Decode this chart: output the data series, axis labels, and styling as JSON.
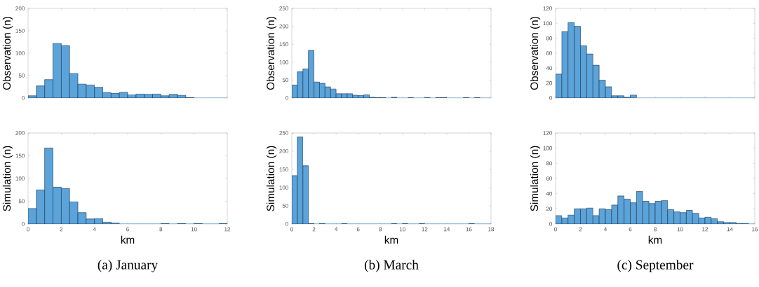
{
  "chart_data": [
    {
      "type": "histogram",
      "ylabel": "Observation (n)",
      "color": "#5ba3d9",
      "bins": [
        0,
        0.5,
        1,
        1.5,
        2,
        2.5,
        3,
        3.5,
        4,
        4.5,
        5,
        5.5,
        6,
        6.5,
        7,
        7.5,
        8,
        8.5,
        9,
        9.5,
        10,
        10.5,
        11,
        11.5,
        12
      ],
      "values": [
        5,
        27,
        41,
        122,
        117,
        55,
        31,
        29,
        24,
        12,
        10,
        13,
        7,
        9,
        8,
        9,
        5,
        8,
        6,
        1,
        0,
        0,
        0,
        0
      ],
      "xlim": [
        0,
        12
      ],
      "xticks": [
        0,
        2,
        4,
        6,
        8,
        10,
        12
      ],
      "ylim": [
        0,
        200
      ],
      "yticks": [
        0,
        50,
        100,
        150,
        200
      ],
      "tick_labels": "y"
    },
    {
      "type": "histogram",
      "ylabel": "Observation (n)",
      "color": "#5ba3d9",
      "bins": [
        0,
        0.5,
        1,
        1.5,
        2,
        2.5,
        3,
        3.5,
        4,
        4.5,
        5,
        5.5,
        6,
        6.5,
        7,
        7.5,
        8,
        8.5,
        9,
        9.5,
        10,
        10.5,
        11,
        11.5,
        12,
        12.5,
        13,
        13.5,
        14,
        14.5,
        15,
        15.5,
        16,
        16.5,
        17,
        17.5,
        18
      ],
      "values": [
        36,
        73,
        81,
        133,
        45,
        41,
        31,
        25,
        12,
        12,
        12,
        8,
        7,
        9,
        2,
        1,
        1,
        0,
        2,
        0,
        0,
        1,
        0,
        0,
        1,
        0,
        1,
        1,
        0,
        0,
        0,
        1,
        0,
        1,
        0,
        0
      ],
      "xlim": [
        0,
        18
      ],
      "xticks": [
        0,
        2,
        4,
        6,
        8,
        10,
        12,
        14,
        16,
        18
      ],
      "ylim": [
        0,
        250
      ],
      "yticks": [
        0,
        50,
        100,
        150,
        200,
        250
      ],
      "tick_labels": "y"
    },
    {
      "type": "histogram",
      "ylabel": "Observation (n)",
      "color": "#5ba3d9",
      "bins": [
        0,
        0.5,
        1,
        1.5,
        2,
        2.5,
        3,
        3.5,
        4,
        4.5,
        5,
        5.5,
        6,
        6.5,
        7,
        7.5,
        8,
        8.5,
        9,
        9.5,
        10,
        10.5,
        11,
        11.5,
        12,
        12.5,
        13,
        13.5,
        14,
        14.5,
        15,
        15.5,
        16
      ],
      "values": [
        32,
        89,
        101,
        96,
        70,
        59,
        44,
        24,
        15,
        3,
        3,
        1,
        4,
        0,
        0,
        0,
        0,
        0,
        0,
        0,
        0,
        0,
        0,
        0,
        0,
        0,
        0,
        0,
        0,
        0,
        0,
        0
      ],
      "xlim": [
        0,
        16
      ],
      "xticks": [
        0,
        2,
        4,
        6,
        8,
        10,
        12,
        14,
        16
      ],
      "ylim": [
        0,
        120
      ],
      "yticks": [
        0,
        20,
        40,
        60,
        80,
        100,
        120
      ],
      "tick_labels": "y"
    },
    {
      "type": "histogram",
      "xlabel": "km",
      "ylabel": "Simulation (n)",
      "color": "#5ba3d9",
      "annotations": [
        "(a) January"
      ],
      "bins": [
        0,
        0.5,
        1,
        1.5,
        2,
        2.5,
        3,
        3.5,
        4,
        4.5,
        5,
        5.5,
        6,
        6.5,
        7,
        7.5,
        8,
        8.5,
        9,
        9.5,
        10,
        10.5,
        11,
        11.5,
        12
      ],
      "values": [
        34,
        75,
        167,
        81,
        78,
        49,
        25,
        11,
        12,
        4,
        2,
        0,
        0,
        0,
        0,
        0,
        1,
        0,
        1,
        0,
        1,
        0,
        0,
        1
      ],
      "xlim": [
        0,
        12
      ],
      "xticks": [
        0,
        2,
        4,
        6,
        8,
        10,
        12
      ],
      "ylim": [
        0,
        200
      ],
      "yticks": [
        0,
        50,
        100,
        150,
        200
      ]
    },
    {
      "type": "histogram",
      "xlabel": "km",
      "ylabel": "Simulation (n)",
      "color": "#5ba3d9",
      "annotations": [
        "(b) March"
      ],
      "bins": [
        0,
        0.5,
        1,
        1.5,
        2,
        2.5,
        3,
        3.5,
        4,
        4.5,
        5,
        5.5,
        6,
        6.5,
        7,
        7.5,
        8,
        8.5,
        9,
        9.5,
        10,
        10.5,
        11,
        11.5,
        12,
        12.5,
        13,
        13.5,
        14,
        14.5,
        15,
        15.5,
        16,
        16.5,
        17,
        17.5,
        18
      ],
      "values": [
        133,
        239,
        160,
        1,
        0,
        2,
        0,
        0,
        0,
        1,
        0,
        0,
        0,
        0,
        0,
        0,
        0,
        0,
        1,
        0,
        1,
        0,
        0,
        1,
        0,
        0,
        0,
        0,
        0,
        0,
        0,
        0,
        1,
        0,
        0,
        0
      ],
      "xlim": [
        0,
        18
      ],
      "xticks": [
        0,
        2,
        4,
        6,
        8,
        10,
        12,
        14,
        16,
        18
      ],
      "ylim": [
        0,
        250
      ],
      "yticks": [
        0,
        50,
        100,
        150,
        200,
        250
      ]
    },
    {
      "type": "histogram",
      "xlabel": "km",
      "ylabel": "Simulation (n)",
      "color": "#5ba3d9",
      "annotations": [
        "(c) September"
      ],
      "bins": [
        0,
        0.5,
        1,
        1.5,
        2,
        2.5,
        3,
        3.5,
        4,
        4.5,
        5,
        5.5,
        6,
        6.5,
        7,
        7.5,
        8,
        8.5,
        9,
        9.5,
        10,
        10.5,
        11,
        11.5,
        12,
        12.5,
        13,
        13.5,
        14,
        14.5,
        15,
        15.5,
        16
      ],
      "values": [
        11,
        8,
        12,
        20,
        20,
        21,
        11,
        20,
        19,
        25,
        37,
        33,
        28,
        43,
        30,
        27,
        30,
        31,
        19,
        16,
        15,
        18,
        14,
        8,
        9,
        7,
        3,
        2,
        2,
        1,
        1,
        0
      ],
      "xlim": [
        0,
        16
      ],
      "xticks": [
        0,
        2,
        4,
        6,
        8,
        10,
        12,
        14,
        16
      ],
      "ylim": [
        0,
        120
      ],
      "yticks": [
        0,
        20,
        40,
        60,
        80,
        100,
        120
      ]
    }
  ]
}
